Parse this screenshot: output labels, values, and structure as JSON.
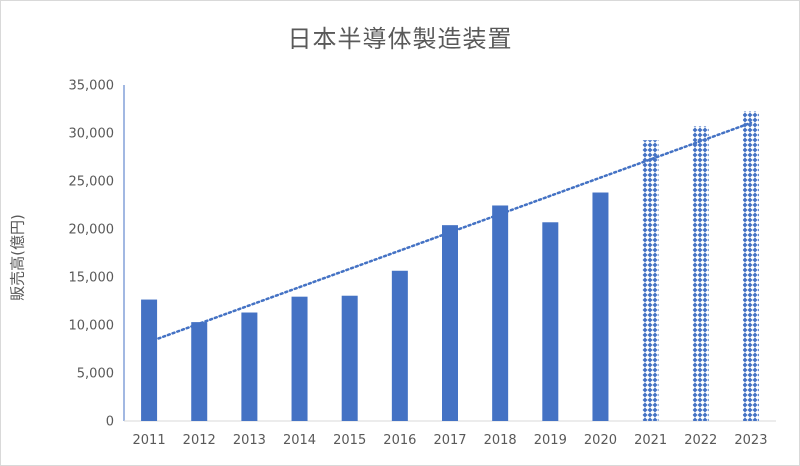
{
  "chart_data": {
    "type": "bar",
    "title": "日本半導体製造装置",
    "ylabel": "販売高(億円)",
    "xlabel": "",
    "ylim": [
      0,
      35000
    ],
    "yticks": [
      "0",
      "5,000",
      "10,000",
      "15,000",
      "20,000",
      "25,000",
      "30,000",
      "35,000"
    ],
    "grid": false,
    "legend": "none",
    "categories": [
      "2011",
      "2012",
      "2013",
      "2014",
      "2015",
      "2016",
      "2017",
      "2018",
      "2019",
      "2020",
      "2021",
      "2022",
      "2023"
    ],
    "values": [
      12650,
      10300,
      11300,
      12950,
      13050,
      15650,
      20400,
      22450,
      20700,
      23800,
      29250,
      30700,
      32250
    ],
    "forecast_from_index": 10,
    "trendline": {
      "type": "linear",
      "style": "dotted"
    },
    "colors": {
      "bar": "#4472c4",
      "axis": "#4472c4",
      "trend": "#4472c4",
      "text": "#595959"
    }
  }
}
